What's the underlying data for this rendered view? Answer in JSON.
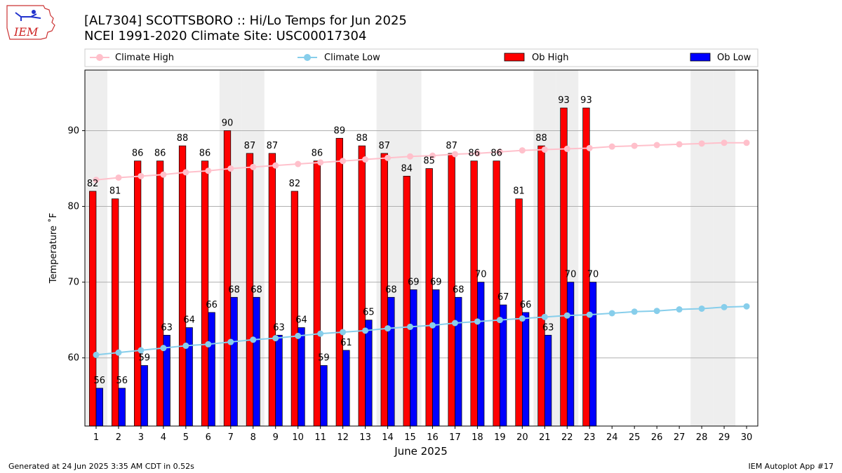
{
  "header": {
    "logo_text": "IEM",
    "title_line1": "[AL7304] SCOTTSBORO :: Hi/Lo Temps for Jun 2025",
    "title_line2": "NCEI 1991-2020 Climate Site: USC00017304"
  },
  "footer": {
    "generated": "Generated at 24 Jun 2025 3:35 AM CDT in 0.52s",
    "app": "IEM Autoplot App #17"
  },
  "chart_data": {
    "type": "bar",
    "xlabel": "June 2025",
    "ylabel": "Temperature ˚F",
    "ylim": [
      51,
      98
    ],
    "xlim": [
      0.5,
      30.5
    ],
    "yticks": [
      60,
      70,
      80,
      90
    ],
    "grid": true,
    "legend_position": "top",
    "weekend_shading_days": [
      1,
      7,
      8,
      14,
      15,
      21,
      22,
      28,
      29
    ],
    "days": [
      1,
      2,
      3,
      4,
      5,
      6,
      7,
      8,
      9,
      10,
      11,
      12,
      13,
      14,
      15,
      16,
      17,
      18,
      19,
      20,
      21,
      22,
      23,
      24,
      25,
      26,
      27,
      28,
      29,
      30
    ],
    "series": [
      {
        "name": "Climate High",
        "kind": "line",
        "color": "#ffc0cb",
        "values": [
          83.5,
          83.8,
          84.0,
          84.2,
          84.5,
          84.7,
          85.0,
          85.2,
          85.4,
          85.6,
          85.8,
          86.0,
          86.2,
          86.4,
          86.6,
          86.7,
          86.9,
          87.0,
          87.2,
          87.4,
          87.5,
          87.6,
          87.7,
          87.9,
          88.0,
          88.1,
          88.2,
          88.3,
          88.4,
          88.4
        ]
      },
      {
        "name": "Climate Low",
        "kind": "line",
        "color": "#87ceeb",
        "values": [
          60.4,
          60.7,
          61.0,
          61.3,
          61.6,
          61.8,
          62.1,
          62.4,
          62.6,
          62.9,
          63.2,
          63.4,
          63.6,
          63.9,
          64.1,
          64.3,
          64.6,
          64.8,
          65.0,
          65.2,
          65.4,
          65.6,
          65.7,
          65.9,
          66.1,
          66.2,
          66.4,
          66.5,
          66.7,
          66.8
        ]
      },
      {
        "name": "Ob High",
        "kind": "bar",
        "color": "#ff0000",
        "values": [
          82,
          81,
          86,
          86,
          88,
          86,
          90,
          87,
          87,
          82,
          86,
          89,
          88,
          87,
          84,
          85,
          87,
          86,
          86,
          81,
          88,
          93,
          93
        ]
      },
      {
        "name": "Ob Low",
        "kind": "bar",
        "color": "#0000ff",
        "values": [
          56,
          56,
          59,
          63,
          64,
          66,
          68,
          68,
          63,
          64,
          59,
          61,
          65,
          68,
          69,
          69,
          68,
          70,
          67,
          66,
          63,
          70,
          70
        ]
      }
    ]
  }
}
